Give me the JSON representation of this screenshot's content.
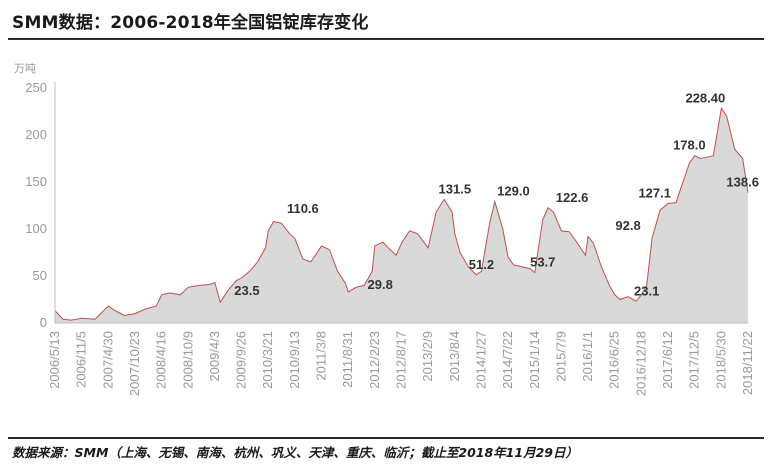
{
  "title": "SMM数据：2006-2018年全国铝锭库存变化",
  "source": "数据来源：SMM（上海、无锡、南海、杭州、巩义、天津、重庆、临沂；截止至2018年11月29日）",
  "chart_data": {
    "type": "area",
    "unit": "万吨",
    "ylim": [
      0,
      250
    ],
    "yticks": [
      0,
      50,
      100,
      150,
      200,
      250
    ],
    "grid": false,
    "fill_color": "#d9d9d9",
    "line_color": "#c0504d",
    "x_tick_labels": [
      "2006/5/13",
      "2006/11/5",
      "2007/4/30",
      "2007/10/23",
      "2008/4/16",
      "2008/10/9",
      "2009/4/3",
      "2009/9/26",
      "2010/3/21",
      "2010/9/13",
      "2011/3/8",
      "2011/8/31",
      "2012/2/23",
      "2012/8/17",
      "2013/2/9",
      "2013/8/4",
      "2014/1/27",
      "2014/7/22",
      "2015/1/14",
      "2015/7/9",
      "2016/1/1",
      "2016/6/25",
      "2016/12/18",
      "2017/6/12",
      "2017/12/5",
      "2018/5/30",
      "2018/11/22"
    ],
    "x": [
      0,
      0.3,
      0.6,
      1,
      1.5,
      2,
      2.2,
      2.6,
      3,
      3.4,
      3.8,
      4,
      4.3,
      4.7,
      5,
      5.4,
      5.8,
      6,
      6.2,
      6.5,
      6.8,
      7,
      7.3,
      7.6,
      7.9,
      8,
      8.2,
      8.5,
      8.8,
      9,
      9.3,
      9.6,
      10,
      10.3,
      10.6,
      10.9,
      11,
      11.3,
      11.6,
      11.9,
      12,
      12.3,
      12.5,
      12.8,
      13,
      13.3,
      13.6,
      14,
      14.3,
      14.6,
      14.9,
      15,
      15.2,
      15.5,
      15.8,
      16,
      16.3,
      16.5,
      16.8,
      17,
      17.2,
      17.5,
      17.8,
      18,
      18.3,
      18.5,
      18.7,
      19,
      19.3,
      19.6,
      19.9,
      20,
      20.2,
      20.5,
      20.8,
      21,
      21.2,
      21.5,
      21.8,
      22,
      22.2,
      22.4,
      22.7,
      23,
      23.3,
      23.5,
      23.8,
      24,
      24.2,
      24.4,
      24.7,
      25,
      25.2,
      25.5,
      25.8,
      26
    ],
    "y": [
      13,
      4,
      3,
      5,
      4,
      18,
      14,
      8,
      10,
      15,
      18,
      30,
      32,
      30,
      38,
      40,
      41,
      43,
      22,
      35,
      45,
      48,
      55,
      65,
      80,
      98,
      108,
      106,
      95,
      90,
      68,
      65,
      82,
      78,
      55,
      42,
      33,
      38,
      40,
      55,
      82,
      86,
      80,
      72,
      85,
      98,
      95,
      80,
      118,
      131.5,
      118,
      95,
      75,
      60,
      51.2,
      55,
      105,
      129,
      100,
      70,
      62,
      60,
      58,
      53.7,
      110,
      122.6,
      118,
      98,
      97,
      85,
      72,
      92,
      85,
      60,
      40,
      30,
      25,
      28,
      23.1,
      30,
      40,
      90,
      120,
      127.1,
      128,
      145,
      170,
      178,
      175,
      176,
      178,
      228.4,
      220,
      185,
      175,
      138.6
    ],
    "data_labels": [
      {
        "x": 7.2,
        "y": 23.5,
        "text": "23.5"
      },
      {
        "x": 9.3,
        "y": 110.6,
        "text": "110.6"
      },
      {
        "x": 12.2,
        "y": 29.8,
        "text": "29.8"
      },
      {
        "x": 15.0,
        "y": 131.5,
        "text": "131.5"
      },
      {
        "x": 16.0,
        "y": 51.2,
        "text": "51.2"
      },
      {
        "x": 17.2,
        "y": 129.0,
        "text": "129.0"
      },
      {
        "x": 18.3,
        "y": 53.7,
        "text": "53.7"
      },
      {
        "x": 19.4,
        "y": 122.6,
        "text": "122.6"
      },
      {
        "x": 21.5,
        "y": 92.8,
        "text": "92.8"
      },
      {
        "x": 22.2,
        "y": 23.1,
        "text": "23.1"
      },
      {
        "x": 22.5,
        "y": 127.1,
        "text": "127.1"
      },
      {
        "x": 23.8,
        "y": 178.0,
        "text": "178.0"
      },
      {
        "x": 24.4,
        "y": 228.4,
        "text": "228.40"
      },
      {
        "x": 25.8,
        "y": 138.6,
        "text": "138.6"
      }
    ]
  }
}
